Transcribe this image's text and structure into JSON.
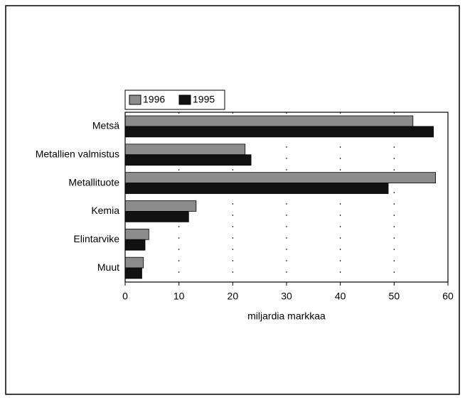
{
  "chart_data": {
    "type": "bar",
    "orientation": "horizontal",
    "x_label": "miljardia markkaa",
    "categories": [
      "Metsä",
      "Metallien valmistus",
      "Metallituote",
      "Kemia",
      "Elintarvike",
      "Muut"
    ],
    "series": [
      {
        "name": "1996",
        "color": "#8c8c8c",
        "values": [
          53.5,
          22.3,
          57.7,
          13.2,
          4.4,
          3.4
        ]
      },
      {
        "name": "1995",
        "color": "#111111",
        "values": [
          57.3,
          23.4,
          48.9,
          11.8,
          3.7,
          3.1
        ]
      }
    ],
    "xlim": [
      0,
      60
    ],
    "xticks": [
      0,
      10,
      20,
      30,
      40,
      50,
      60
    ],
    "grid": true,
    "legend": "top-left"
  }
}
